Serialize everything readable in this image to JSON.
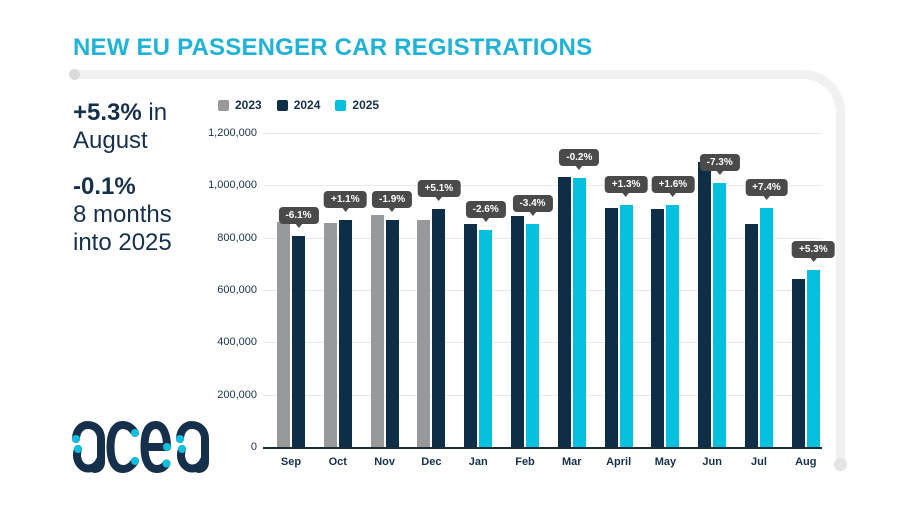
{
  "header": {
    "title": "NEW EU PASSENGER CAR REGISTRATIONS"
  },
  "stats": {
    "august_change": "+5.3%",
    "august_suffix": " in",
    "august_label": "August",
    "ytd_change": "-0.1%",
    "ytd_line2": "8 months",
    "ytd_line3": "into 2025"
  },
  "logo": {
    "text": "acea"
  },
  "colors": {
    "title_cyan": "#20b3d7",
    "text_navy": "#16304c",
    "bar_gray": "#97999b",
    "bar_navy": "#0e2d47",
    "bar_cyan": "#06c1de",
    "tooltip_bg": "#4a4a4a",
    "gridline": "#e9e9e9",
    "axis": "#1c2b38",
    "frame": "#f1f1f1"
  },
  "chart_data": {
    "type": "bar",
    "title": "NEW EU PASSENGER CAR REGISTRATIONS",
    "categories": [
      "Sep",
      "Oct",
      "Nov",
      "Dec",
      "Jan",
      "Feb",
      "Mar",
      "April",
      "May",
      "Jun",
      "Jul",
      "Aug"
    ],
    "series": [
      {
        "name": "2023",
        "color": "#97999b",
        "values": [
          861000,
          856000,
          886000,
          866000,
          null,
          null,
          null,
          null,
          null,
          null,
          null,
          null
        ]
      },
      {
        "name": "2024",
        "color": "#0e2d47",
        "values": [
          808000,
          866000,
          869000,
          910000,
          854000,
          883000,
          1031000,
          914000,
          911000,
          1089000,
          852000,
          643000
        ]
      },
      {
        "name": "2025",
        "color": "#06c1de",
        "values": [
          null,
          null,
          null,
          null,
          831000,
          853000,
          1029000,
          926000,
          926000,
          1010000,
          915000,
          677000
        ]
      }
    ],
    "yoy_change_labels": [
      "-6.1%",
      "+1.1%",
      "-1.9%",
      "+5.1%",
      "-2.6%",
      "-3.4%",
      "-0.2%",
      "+1.3%",
      "+1.6%",
      "-7.3%",
      "+7.4%",
      "+5.3%"
    ],
    "y_ticks": [
      "1,200,000",
      "1,000,000",
      "800,000",
      "600,000",
      "400,000",
      "200,000",
      "0"
    ],
    "ylim": [
      0,
      1200000
    ],
    "xlabel": "",
    "ylabel": "",
    "grid": true,
    "legend": [
      "2023",
      "2024",
      "2025"
    ],
    "legend_position": "top-left"
  }
}
